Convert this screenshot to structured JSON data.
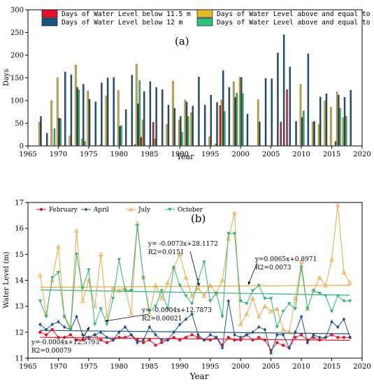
{
  "chart_data": [
    {
      "type": "bar",
      "panel_label": "(a)",
      "xlabel": "Year",
      "ylabel": "Days",
      "xlim": [
        1965,
        2020
      ],
      "ylim": [
        0,
        300
      ],
      "xticks": [
        "1965",
        "1970",
        "1975",
        "1980",
        "1985",
        "1990",
        "1995",
        "2000",
        "2005",
        "2010",
        "2015",
        "2020"
      ],
      "yticks": [
        "0",
        "50",
        "100",
        "150",
        "200",
        "250",
        "300"
      ],
      "legend_position": "top",
      "legend": [
        {
          "label": "Days of Water Level below 11.5 m",
          "color": "#e8102b",
          "series": "below115"
        },
        {
          "label": "Days of Water Level above and equal to 14 m",
          "color": "#e3b92a",
          "series": "above14"
        },
        {
          "label": "Days of Water Level below 12 m",
          "color": "#1a5580",
          "series": "below12"
        },
        {
          "label": "Days of Water Level above and equal to 15 m",
          "color": "#2ec27e",
          "series": "above15"
        }
      ],
      "x": [
        1967,
        1968,
        1969,
        1970,
        1971,
        1972,
        1973,
        1974,
        1975,
        1976,
        1977,
        1978,
        1979,
        1980,
        1981,
        1982,
        1983,
        1984,
        1985,
        1986,
        1987,
        1988,
        1989,
        1990,
        1991,
        1992,
        1993,
        1994,
        1995,
        1996,
        1997,
        1998,
        1999,
        2000,
        2001,
        2002,
        2003,
        2004,
        2005,
        2006,
        2007,
        2008,
        2009,
        2010,
        2011,
        2012,
        2013,
        2014,
        2015,
        2016,
        2017,
        2018
      ],
      "series": [
        {
          "id": "below115",
          "values": [
            0,
            0,
            0,
            0,
            0,
            0,
            0,
            0,
            0,
            0,
            0,
            0,
            0,
            0,
            0,
            0,
            3,
            19,
            0,
            52,
            0,
            0,
            0,
            0,
            0,
            0,
            0,
            0,
            0,
            0,
            89,
            0,
            0,
            0,
            0,
            0,
            0,
            0,
            0,
            0,
            53,
            124,
            0,
            0,
            0,
            0,
            0,
            0,
            0,
            10,
            0,
            0
          ]
        },
        {
          "id": "above14",
          "values": [
            52,
            0,
            100,
            150,
            0,
            22,
            178,
            15,
            121,
            0,
            3,
            110,
            0,
            122,
            0,
            0,
            180,
            57,
            0,
            15,
            0,
            47,
            143,
            57,
            101,
            73,
            0,
            0,
            20,
            4,
            101,
            0,
            141,
            151,
            0,
            0,
            102,
            0,
            0,
            0,
            0,
            0,
            0,
            135,
            0,
            52,
            47,
            99,
            85,
            119,
            62,
            0
          ]
        },
        {
          "id": "below12",
          "values": [
            65,
            28,
            0,
            61,
            163,
            157,
            129,
            136,
            103,
            97,
            139,
            150,
            151,
            43,
            80,
            156,
            93,
            120,
            142,
            129,
            124,
            90,
            83,
            65,
            97,
            88,
            152,
            90,
            112,
            96,
            166,
            129,
            107,
            151,
            70,
            0,
            53,
            149,
            148,
            205,
            245,
            174,
            54,
            63,
            203,
            54,
            108,
            115,
            0,
            112,
            107,
            123
          ]
        },
        {
          "id": "above15",
          "values": [
            0,
            0,
            38,
            60,
            0,
            0,
            123,
            10,
            0,
            0,
            0,
            0,
            0,
            45,
            0,
            0,
            144,
            0,
            0,
            0,
            0,
            0,
            0,
            30,
            65,
            0,
            0,
            0,
            0,
            0,
            76,
            0,
            116,
            115,
            0,
            0,
            0,
            0,
            0,
            0,
            0,
            0,
            0,
            77,
            0,
            0,
            0,
            0,
            0,
            83,
            65,
            0
          ]
        }
      ]
    },
    {
      "type": "line",
      "panel_label": "(b)",
      "xlabel": "Year",
      "ylabel": "Water Level  (m)",
      "xlim": [
        1965,
        2020
      ],
      "ylim": [
        11,
        17
      ],
      "xticks": [
        "1965",
        "1970",
        "1975",
        "1980",
        "1985",
        "1990",
        "1995",
        "2000",
        "2005",
        "2010",
        "2015",
        "2020"
      ],
      "yticks": [
        "11",
        "12",
        "13",
        "14",
        "15",
        "16",
        "17"
      ],
      "legend_position": "top-left",
      "x": [
        1967,
        1968,
        1969,
        1970,
        1971,
        1972,
        1973,
        1974,
        1975,
        1976,
        1977,
        1978,
        1979,
        1980,
        1981,
        1982,
        1983,
        1984,
        1985,
        1986,
        1987,
        1988,
        1989,
        1990,
        1991,
        1992,
        1993,
        1994,
        1995,
        1996,
        1997,
        1998,
        1999,
        2000,
        2001,
        2002,
        2003,
        2004,
        2005,
        2006,
        2007,
        2008,
        2009,
        2010,
        2011,
        2012,
        2013,
        2014,
        2015,
        2016,
        2017,
        2018
      ],
      "series": [
        {
          "name": "February",
          "color": "#e8102b",
          "marker": "circle",
          "values": [
            12.0,
            11.9,
            12.1,
            11.8,
            11.8,
            11.9,
            11.7,
            11.7,
            11.8,
            11.9,
            11.7,
            11.6,
            11.7,
            11.8,
            11.8,
            11.9,
            11.7,
            11.6,
            11.7,
            11.5,
            11.6,
            11.7,
            11.8,
            11.7,
            11.8,
            11.9,
            11.8,
            11.7,
            11.7,
            11.8,
            11.5,
            11.8,
            11.7,
            11.7,
            11.9,
            11.7,
            11.8,
            11.7,
            11.3,
            11.6,
            11.5,
            11.4,
            11.8,
            11.9,
            11.7,
            11.8,
            11.7,
            11.8,
            11.9,
            11.8,
            11.8,
            11.8
          ]
        },
        {
          "name": "April",
          "color": "#1a5580",
          "marker": "diamond",
          "values": [
            12.3,
            12.1,
            12.3,
            12.4,
            12.2,
            12.1,
            12.6,
            11.9,
            11.8,
            11.9,
            12.0,
            11.8,
            11.7,
            12.0,
            12.2,
            11.9,
            11.6,
            11.7,
            12.2,
            11.9,
            11.7,
            11.7,
            12.0,
            12.3,
            12.5,
            12.7,
            11.9,
            11.7,
            11.9,
            11.8,
            11.4,
            13.2,
            11.9,
            11.8,
            11.9,
            12.0,
            12.2,
            12.1,
            11.2,
            11.9,
            11.9,
            11.4,
            12.0,
            12.6,
            11.6,
            11.9,
            11.8,
            11.8,
            12.4,
            12.2,
            12.5,
            11.8
          ]
        },
        {
          "name": "July",
          "color": "#e6a93c",
          "marker": "triangle-up",
          "values": [
            14.2,
            12.7,
            14.0,
            15.3,
            12.6,
            12.2,
            15.9,
            13.2,
            14.0,
            13.0,
            15.0,
            12.6,
            13.7,
            13.6,
            13.7,
            12.7,
            16.2,
            14.1,
            12.7,
            13.8,
            13.3,
            13.9,
            14.5,
            15.0,
            14.1,
            13.4,
            13.7,
            13.4,
            13.8,
            13.5,
            14.0,
            15.6,
            16.6,
            12.3,
            12.7,
            13.3,
            12.6,
            13.0,
            12.8,
            12.9,
            12.1,
            12.0,
            13.3,
            14.7,
            12.9,
            13.6,
            14.1,
            13.8,
            14.8,
            16.9,
            14.3,
            13.9
          ]
        },
        {
          "name": "October",
          "color": "#2bb47a",
          "marker": "triangle-down",
          "values": [
            13.2,
            12.6,
            14.1,
            14.3,
            12.6,
            12.1,
            15.0,
            13.7,
            14.4,
            12.3,
            12.9,
            12.3,
            13.3,
            14.8,
            13.6,
            13.6,
            16.1,
            14.1,
            12.8,
            13.0,
            13.6,
            12.9,
            14.5,
            13.8,
            13.4,
            13.1,
            14.0,
            14.7,
            13.2,
            13.5,
            12.6,
            15.8,
            15.8,
            13.2,
            13.1,
            13.6,
            13.8,
            13.3,
            13.3,
            12.2,
            12.8,
            13.1,
            12.9,
            14.5,
            12.9,
            13.6,
            13.5,
            13.4,
            12.8,
            13.4,
            13.2,
            13.2
          ]
        }
      ],
      "annotations": [
        {
          "line1": "y= -0.0073x+28.1172",
          "line2": "R2=0.0151",
          "target_series": "July"
        },
        {
          "line1": "y=0.0065x+0.8971",
          "line2": "R2=0.0073",
          "target_series": "October"
        },
        {
          "line1": "y= -0.0004x+12.7873",
          "line2": "R2=0.00021",
          "target_series": "April"
        },
        {
          "line1": "y=-0.0004x+12.5793",
          "line2": "R2=0.00079",
          "target_series": "February"
        }
      ]
    }
  ]
}
